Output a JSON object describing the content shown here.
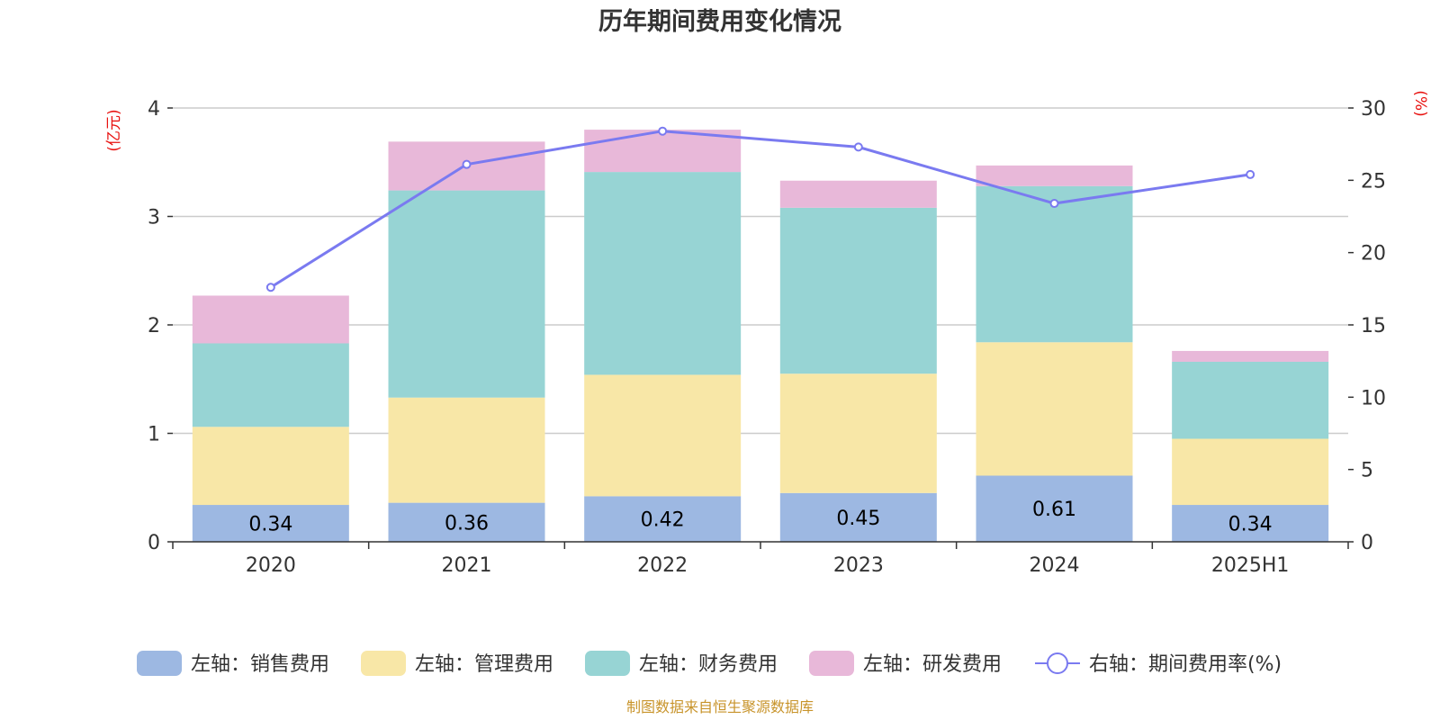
{
  "title": "历年期间费用变化情况",
  "left_unit": "(亿元)",
  "right_unit": "(%)",
  "source": "制图数据来自恒生聚源数据库",
  "colors": {
    "sales": "#9db8e2",
    "admin": "#f8e7a7",
    "finance": "#97d4d4",
    "rd": "#e8b8d9",
    "rate": "#7a7af0"
  },
  "chart_data": {
    "type": "bar",
    "categories": [
      "2020",
      "2021",
      "2022",
      "2023",
      "2024",
      "2025H1"
    ],
    "ylim_left": [
      0,
      4
    ],
    "yticks_left": [
      "0",
      "1",
      "2",
      "3",
      "4"
    ],
    "ylim_right": [
      0,
      30
    ],
    "yticks_right": [
      "0",
      "5",
      "10",
      "15",
      "20",
      "25",
      "30"
    ],
    "series": [
      {
        "key": "sales",
        "name": "左轴：销售费用",
        "values": [
          0.34,
          0.36,
          0.42,
          0.45,
          0.61,
          0.34
        ],
        "labels": [
          "0.34",
          "0.36",
          "0.42",
          "0.45",
          "0.61",
          "0.34"
        ]
      },
      {
        "key": "admin",
        "name": "左轴：管理费用",
        "values": [
          0.72,
          0.97,
          1.12,
          1.1,
          1.23,
          0.61
        ]
      },
      {
        "key": "finance",
        "name": "左轴：财务费用",
        "values": [
          0.77,
          1.91,
          1.87,
          1.53,
          1.44,
          0.71
        ]
      },
      {
        "key": "rd",
        "name": "左轴：研发费用",
        "values": [
          0.44,
          0.45,
          0.39,
          0.25,
          0.19,
          0.1
        ]
      }
    ],
    "line": {
      "key": "rate",
      "name": "右轴：期间费用率(%)",
      "values": [
        17.6,
        26.1,
        28.4,
        27.3,
        23.4,
        25.4
      ]
    },
    "grid": true,
    "legend_position": "bottom"
  }
}
